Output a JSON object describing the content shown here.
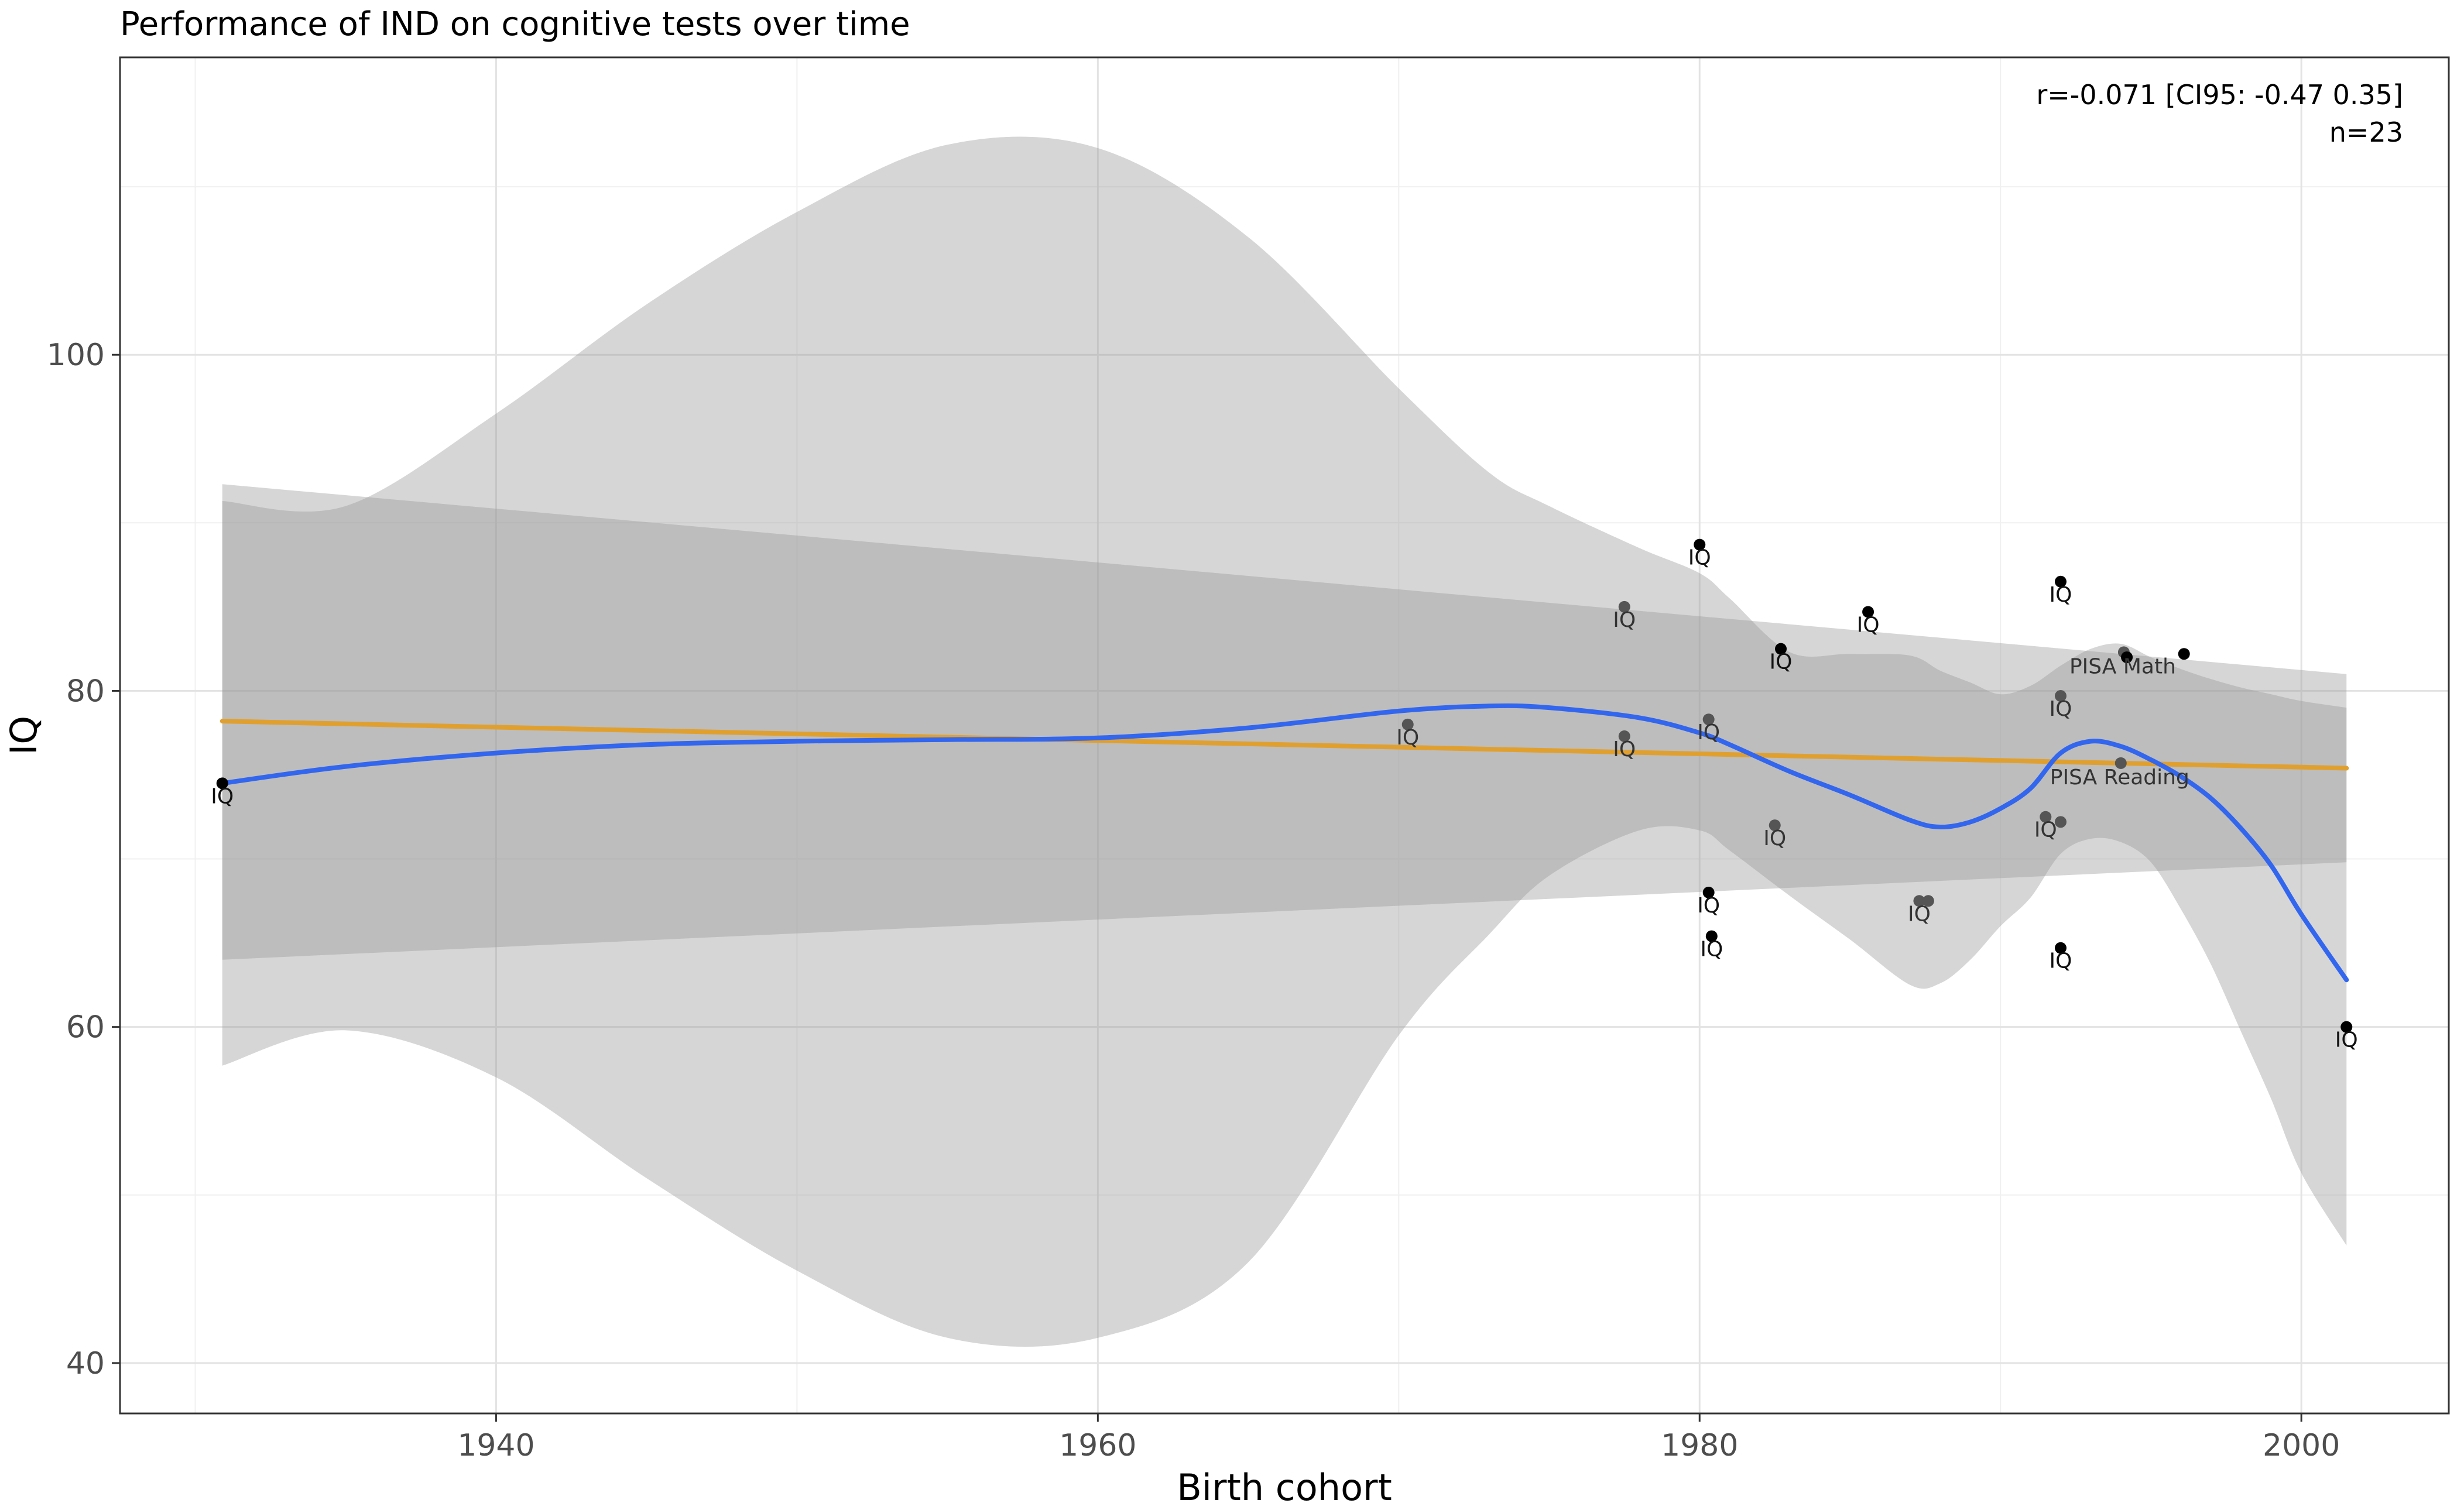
{
  "chart_data": {
    "type": "scatter",
    "title": "Performance of IND on cognitive tests over time",
    "xlabel": "Birth cohort",
    "ylabel": "IQ",
    "xlim": [
      1927.5,
      2004.9
    ],
    "ylim": [
      37,
      117.7
    ],
    "x_ticks": [
      1940,
      1960,
      1980,
      2000
    ],
    "y_ticks": [
      40,
      60,
      80,
      100
    ],
    "x_tick_labels": [
      "1940",
      "1960",
      "1980",
      "2000"
    ],
    "y_tick_labels": [
      "40",
      "60",
      "80",
      "100"
    ],
    "grid": true,
    "theme": "bw",
    "annotation": {
      "line1": "r=-0.071 [CI95: -0.47 0.35]",
      "line2": "n=23",
      "placement": "top-right"
    },
    "colors": {
      "loess": "#3366ee",
      "linear": "#e0a030",
      "ribbon": "#c8c8c8",
      "point_dark": "#000000",
      "point_light": "#555555"
    },
    "points": [
      {
        "x": 1930.9,
        "y": 74.5,
        "label": "IQ",
        "shade": "dark"
      },
      {
        "x": 1970.3,
        "y": 78.0,
        "label": "IQ",
        "shade": "light"
      },
      {
        "x": 1977.5,
        "y": 85.0,
        "label": "IQ",
        "shade": "light"
      },
      {
        "x": 1977.5,
        "y": 77.3,
        "label": "IQ",
        "shade": "light"
      },
      {
        "x": 1980.0,
        "y": 88.7,
        "label": "IQ",
        "shade": "dark"
      },
      {
        "x": 1980.3,
        "y": 78.3,
        "label": "IQ",
        "shade": "light"
      },
      {
        "x": 1980.3,
        "y": 68.0,
        "label": "IQ",
        "shade": "dark"
      },
      {
        "x": 1980.4,
        "y": 65.4,
        "label": "IQ",
        "shade": "dark"
      },
      {
        "x": 1982.5,
        "y": 72.0,
        "label": "IQ",
        "shade": "light"
      },
      {
        "x": 1982.7,
        "y": 82.5,
        "label": "IQ",
        "shade": "dark"
      },
      {
        "x": 1985.6,
        "y": 84.7,
        "label": "IQ",
        "shade": "dark"
      },
      {
        "x": 1987.3,
        "y": 67.5,
        "label": "IQ",
        "shade": "light"
      },
      {
        "x": 1987.6,
        "y": 67.5,
        "label": "",
        "shade": "light"
      },
      {
        "x": 1991.5,
        "y": 72.5,
        "label": "IQ",
        "shade": "light"
      },
      {
        "x": 1992.0,
        "y": 86.5,
        "label": "IQ",
        "shade": "dark"
      },
      {
        "x": 1992.0,
        "y": 79.7,
        "label": "IQ",
        "shade": "light"
      },
      {
        "x": 1992.0,
        "y": 72.2,
        "label": "",
        "shade": "light"
      },
      {
        "x": 1992.0,
        "y": 64.7,
        "label": "IQ",
        "shade": "dark"
      },
      {
        "x": 1994.1,
        "y": 82.3,
        "label": "PISA Math",
        "shade": "light"
      },
      {
        "x": 1994.2,
        "y": 82.0,
        "label": "",
        "shade": "dark"
      },
      {
        "x": 1994.0,
        "y": 75.7,
        "label": "PISA Reading",
        "shade": "light"
      },
      {
        "x": 1996.1,
        "y": 82.2,
        "label": "",
        "shade": "dark"
      },
      {
        "x": 2001.5,
        "y": 60.0,
        "label": "IQ",
        "shade": "dark"
      }
    ],
    "linear_fit": {
      "x": [
        1930.9,
        2001.5
      ],
      "y": [
        78.2,
        75.4
      ],
      "ci_upper": [
        92.3,
        81.0
      ],
      "ci_lower": [
        64.0,
        69.8
      ]
    },
    "loess_fit": {
      "x": [
        1930.9,
        1935,
        1940,
        1945,
        1950,
        1955,
        1960,
        1965,
        1970,
        1973,
        1975,
        1978,
        1980,
        1981,
        1983,
        1985,
        1987,
        1988,
        1989,
        1990,
        1991,
        1992,
        1993,
        1994,
        1995,
        1996,
        1997,
        1998,
        1999,
        2000,
        2001.5
      ],
      "y": [
        74.5,
        75.5,
        76.3,
        76.8,
        77.0,
        77.1,
        77.2,
        77.8,
        78.8,
        79.1,
        79.0,
        78.4,
        77.5,
        76.8,
        75.2,
        73.8,
        72.3,
        71.9,
        72.2,
        73.0,
        74.2,
        76.3,
        77.0,
        76.7,
        75.9,
        74.9,
        73.6,
        71.8,
        69.6,
        66.7,
        62.8
      ],
      "ci_upper": [
        91.3,
        91.0,
        96.5,
        103.0,
        108.5,
        112.5,
        112.3,
        107.0,
        98.0,
        93.0,
        91.0,
        88.5,
        87.0,
        85.5,
        82.3,
        82.2,
        82.1,
        81.2,
        80.5,
        79.8,
        80.3,
        81.5,
        82.5,
        82.8,
        82.0,
        81.3,
        80.7,
        80.2,
        79.8,
        79.4,
        79.0
      ],
      "ci_lower": [
        57.7,
        59.8,
        57.0,
        51.0,
        45.5,
        41.5,
        41.5,
        46.0,
        59.5,
        65.5,
        69.0,
        71.7,
        71.7,
        70.5,
        67.8,
        65.2,
        62.5,
        62.6,
        64.0,
        66.0,
        67.7,
        70.3,
        71.2,
        71.0,
        69.8,
        67.0,
        63.7,
        59.7,
        55.7,
        51.3,
        47.0
      ]
    }
  }
}
